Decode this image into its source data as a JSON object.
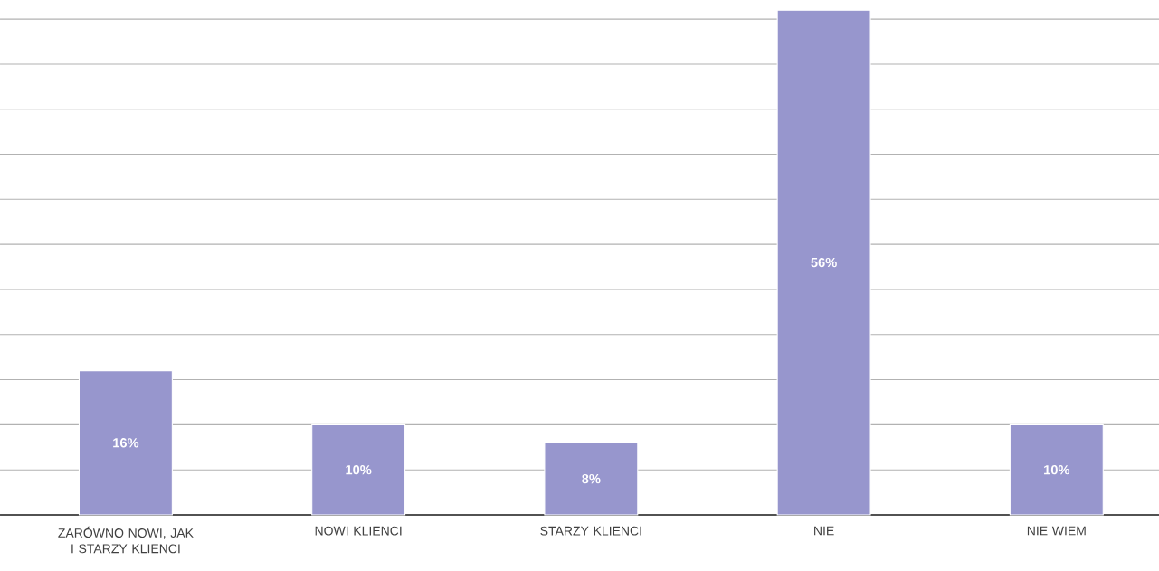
{
  "chart_data": {
    "type": "bar",
    "categories": [
      "ZARÓWNO NOWI, JAK I STARZY KLIENCI",
      "NOWI KLIENCI",
      "STARZY KLIENCI",
      "NIE",
      "NIE WIEM"
    ],
    "values": [
      16,
      10,
      8,
      56,
      10
    ],
    "value_labels": [
      "16%",
      "10%",
      "8%",
      "56%",
      "10%"
    ],
    "color": "#9796cd",
    "tick_labels": "x",
    "grid": "y"
  }
}
